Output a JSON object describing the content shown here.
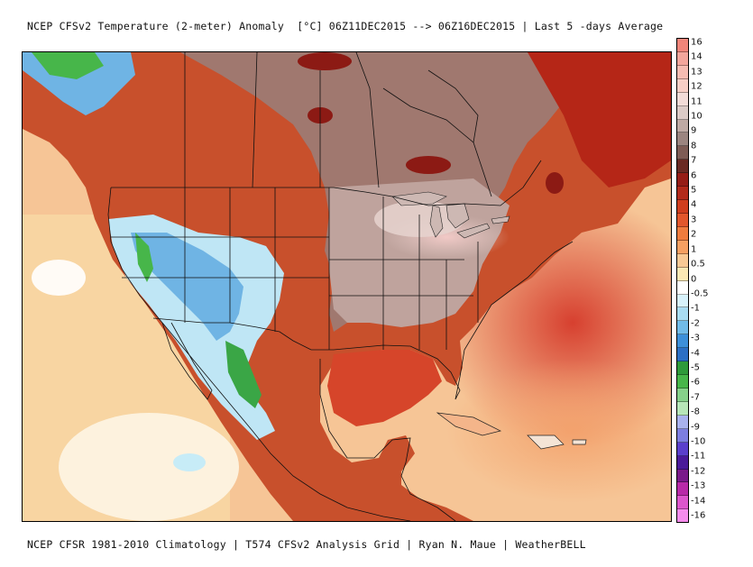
{
  "header": {
    "title": "NCEP CFSv2 Temperature (2-meter) Anomaly  [°C] 06Z11DEC2015 --> 06Z16DEC2015 | Last 5 -days Average"
  },
  "footer": {
    "credits": "NCEP CFSR 1981-2010 Climatology | T574 CFSv2 Analysis Grid | Ryan N. Maue | WeatherBELL"
  },
  "map": {
    "region": "North America",
    "ocean_color": "#f6c596",
    "land_base_color": "#c8502c"
  },
  "colorbar": {
    "unit": "°C",
    "labels": [
      "16",
      "14",
      "13",
      "12",
      "11",
      "10",
      "9",
      "8",
      "7",
      "6",
      "5",
      "4",
      "3",
      "2",
      "1",
      "0.5",
      "0",
      "-0.5",
      "-1",
      "-2",
      "-3",
      "-4",
      "-5",
      "-6",
      "-7",
      "-8",
      "-9",
      "-10",
      "-11",
      "-12",
      "-13",
      "-14",
      "-16"
    ],
    "colors": [
      "#f0857a",
      "#f4a69c",
      "#f6bcb2",
      "#f8cfc6",
      "#f3dcd8",
      "#dccbc7",
      "#bfaaa4",
      "#9c8580",
      "#7e5c55",
      "#6a2a23",
      "#961d16",
      "#b22a1a",
      "#cf3e1e",
      "#e2572c",
      "#ef7c3e",
      "#f6a062",
      "#f9c995",
      "#fbe8b4",
      "#ffffff",
      "#d8f2fb",
      "#a9dcf2",
      "#71bbe8",
      "#3d8fd9",
      "#2c6fc4",
      "#2e9a3a",
      "#47b64a",
      "#86d18a",
      "#b7e6b8",
      "#a9b2ee",
      "#7d7ee0",
      "#5a3fcc",
      "#4a1a9a",
      "#7a1a8a",
      "#b82aa8",
      "#dc56cc",
      "#f58cec"
    ]
  }
}
